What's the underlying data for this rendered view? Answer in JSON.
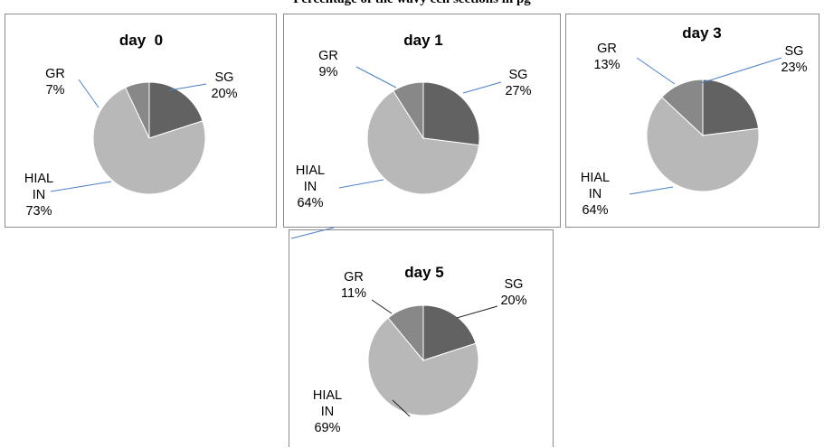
{
  "figure_title": "Percentage of the wavy cell sections in pg",
  "colors": {
    "SG": "#626262",
    "HIALIN": "#b8b8b8",
    "GR": "#888888",
    "leader": "#4a7fc8",
    "leader_dark": "#222222"
  },
  "chart_data": [
    {
      "type": "pie",
      "title": "day  0",
      "categories": [
        "SG",
        "HIAL IN",
        "GR"
      ],
      "values": [
        20,
        73,
        7
      ],
      "labels": {
        "sg": [
          "SG",
          "20%"
        ],
        "hialin": [
          "HIAL",
          "IN",
          "73%"
        ],
        "gr": [
          "GR",
          "7%"
        ]
      }
    },
    {
      "type": "pie",
      "title": "day 1",
      "categories": [
        "SG",
        "HIAL IN",
        "GR"
      ],
      "values": [
        27,
        64,
        9
      ],
      "labels": {
        "sg": [
          "SG",
          "27%"
        ],
        "hialin": [
          "HIAL",
          "IN",
          "64%"
        ],
        "gr": [
          "GR",
          "9%"
        ]
      }
    },
    {
      "type": "pie",
      "title": "day 3",
      "categories": [
        "SG",
        "HIAL IN",
        "GR"
      ],
      "values": [
        23,
        64,
        13
      ],
      "labels": {
        "sg": [
          "SG",
          "23%"
        ],
        "hialin": [
          "HIAL",
          "IN",
          "64%"
        ],
        "gr": [
          "GR",
          "13%"
        ]
      }
    },
    {
      "type": "pie",
      "title": "day 5",
      "categories": [
        "SG",
        "HIAL IN",
        "GR"
      ],
      "values": [
        20,
        69,
        11
      ],
      "labels": {
        "sg": [
          "SG",
          "20%"
        ],
        "hialin": [
          "HIAL",
          "IN",
          "69%"
        ],
        "gr": [
          "GR",
          "11%"
        ]
      }
    }
  ]
}
